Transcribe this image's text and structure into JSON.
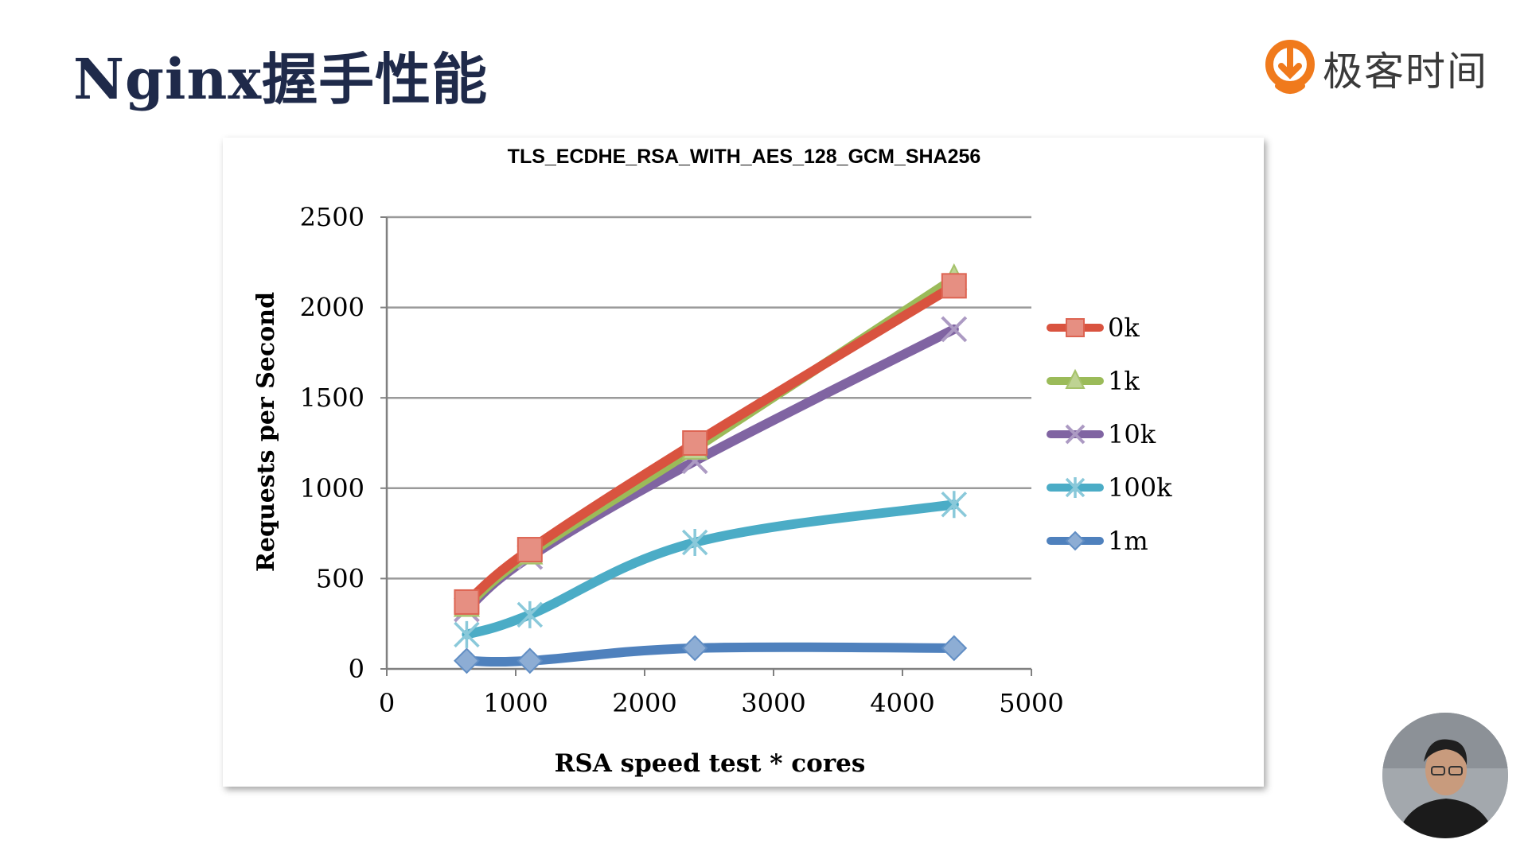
{
  "slide": {
    "title": "Nginx握手性能"
  },
  "brand": {
    "name": "极客时间",
    "accent": "#f07a1c"
  },
  "chart_data": {
    "type": "line",
    "title": "TLS_ECDHE_RSA_WITH_AES_128_GCM_SHA256",
    "xlabel": "RSA speed test * cores",
    "ylabel": "Requests per Second",
    "xlim": [
      0,
      5000
    ],
    "ylim": [
      0,
      2500
    ],
    "xticks": [
      0,
      1000,
      2000,
      3000,
      4000,
      5000
    ],
    "yticks": [
      0,
      500,
      1000,
      1500,
      2000,
      2500
    ],
    "grid": "horizontal",
    "legend_position": "right",
    "x": [
      620,
      1110,
      2390,
      4400
    ],
    "series": [
      {
        "name": "0k",
        "values": [
          370,
          660,
          1250,
          2120
        ],
        "color": "#d9533f",
        "marker": "square"
      },
      {
        "name": "1k",
        "values": [
          350,
          640,
          1220,
          2160
        ],
        "color": "#9bbb59",
        "marker": "triangle"
      },
      {
        "name": "10k",
        "values": [
          330,
          620,
          1150,
          1880
        ],
        "color": "#8064a2",
        "marker": "x"
      },
      {
        "name": "100k",
        "values": [
          190,
          300,
          700,
          910
        ],
        "color": "#4bacc6",
        "marker": "star"
      },
      {
        "name": "1m",
        "values": [
          45,
          45,
          115,
          115
        ],
        "color": "#4f81bd",
        "marker": "diamond"
      }
    ]
  }
}
